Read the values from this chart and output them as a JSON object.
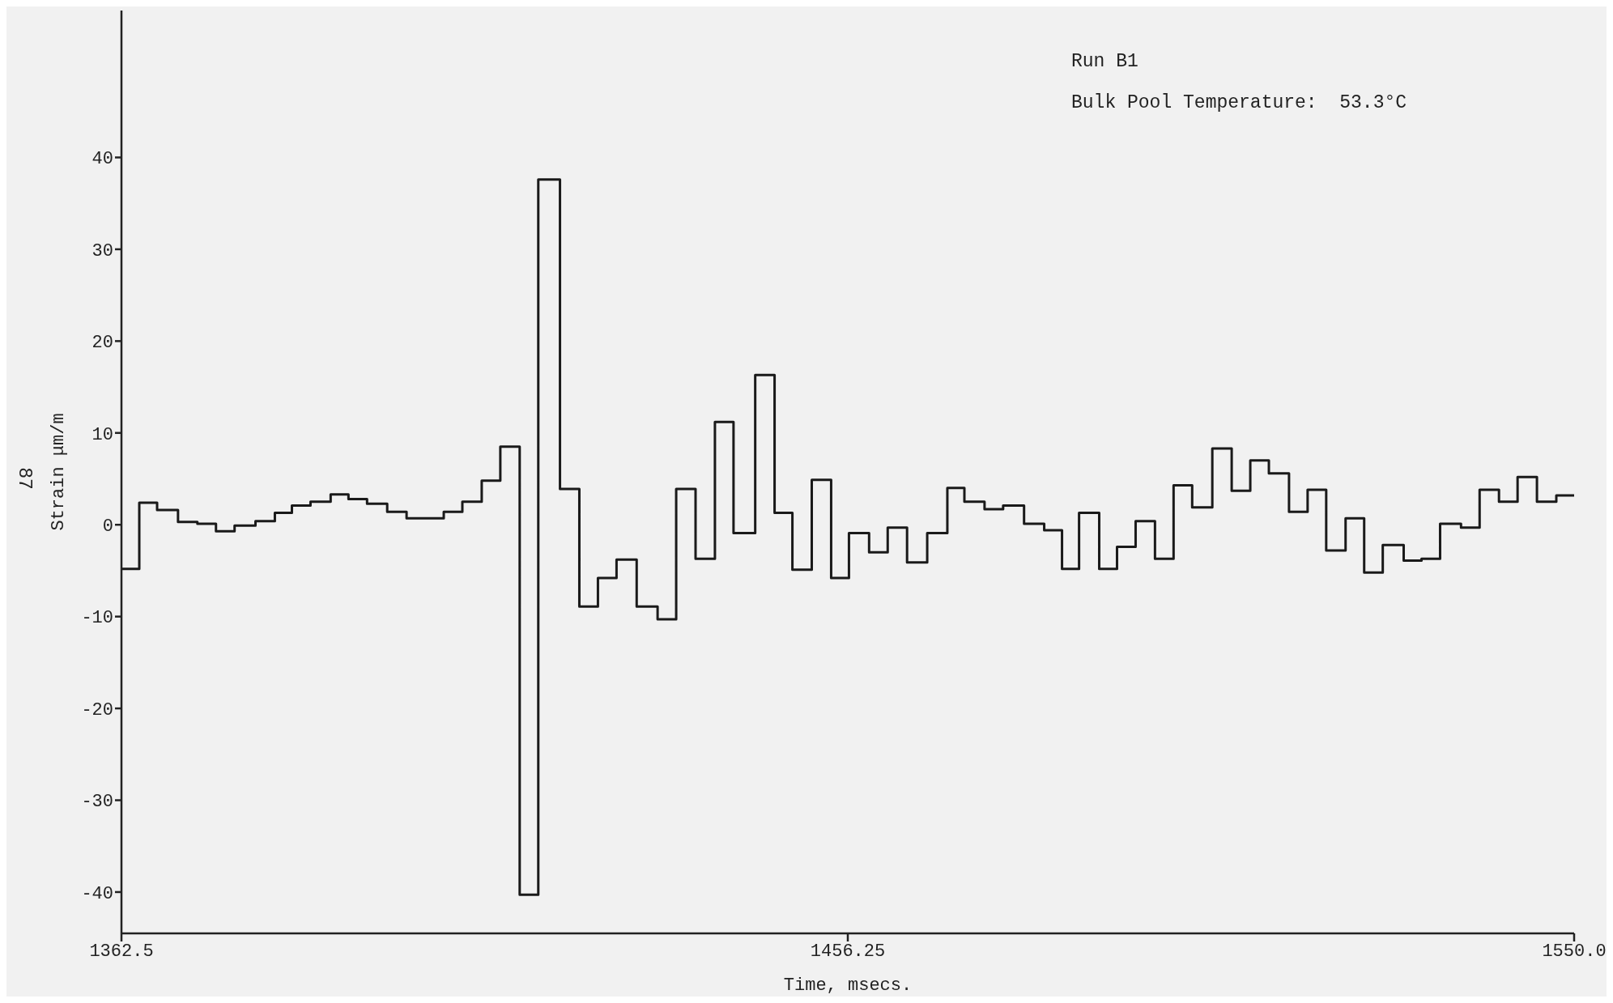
{
  "chart_data": {
    "type": "step",
    "xlabel": "Time, msecs.",
    "ylabel": "Strain μm/m",
    "annotations": [
      "Run B1",
      "Bulk Pool Temperature:  53.3°C",
      "87"
    ],
    "x": [
      1362.5,
      1364.8,
      1367.1,
      1369.8,
      1372.3,
      1374.7,
      1377.1,
      1379.8,
      1382.3,
      1384.5,
      1386.9,
      1389.5,
      1391.8,
      1394.2,
      1396.8,
      1399.3,
      1401.7,
      1404.1,
      1406.5,
      1409.0,
      1411.4,
      1413.9,
      1416.3,
      1419.1,
      1421.6,
      1424.0,
      1426.4,
      1429.0,
      1431.7,
      1434.1,
      1436.6,
      1439.1,
      1441.5,
      1444.3,
      1446.8,
      1449.1,
      1451.6,
      1454.1,
      1456.4,
      1459.0,
      1461.4,
      1463.9,
      1466.5,
      1469.1,
      1471.3,
      1473.9,
      1476.3,
      1479.0,
      1481.6,
      1483.9,
      1486.1,
      1488.7,
      1491.0,
      1493.4,
      1495.9,
      1498.3,
      1500.7,
      1503.3,
      1505.8,
      1508.2,
      1510.6,
      1513.2,
      1515.6,
      1518.0,
      1520.5,
      1522.9,
      1525.3,
      1528.0,
      1530.3,
      1532.7,
      1535.4,
      1537.8,
      1540.3,
      1542.7,
      1545.2,
      1547.7,
      1550.0
    ],
    "series": [
      {
        "color": "#1a1a1a",
        "values": [
          -4.8,
          2.4,
          1.6,
          0.3,
          0.1,
          -0.7,
          -0.1,
          0.4,
          1.3,
          2.1,
          2.5,
          3.3,
          2.8,
          2.3,
          1.4,
          0.7,
          0.7,
          1.4,
          2.5,
          4.8,
          8.5,
          -40.3,
          37.6,
          3.9,
          -8.9,
          -5.8,
          -3.8,
          -8.9,
          -10.3,
          3.9,
          -3.7,
          11.2,
          -0.9,
          16.3,
          1.3,
          -4.9,
          4.9,
          -5.8,
          -0.9,
          -3.0,
          -0.3,
          -4.1,
          -0.9,
          4.0,
          2.5,
          1.7,
          2.1,
          0.1,
          -0.6,
          -4.8,
          1.3,
          -4.8,
          -2.4,
          0.4,
          -3.7,
          4.3,
          1.9,
          8.3,
          3.7,
          7.0,
          5.6,
          1.4,
          3.8,
          -2.8,
          0.7,
          -5.2,
          -2.2,
          -3.9,
          -3.7,
          0.1,
          -0.3,
          3.8,
          2.5,
          5.2,
          2.5,
          3.2,
          3.2
        ]
      }
    ],
    "xlim": [
      1362.5,
      1550.0
    ],
    "xticks": [
      1362.5,
      1456.25,
      {
        "value": 1550,
        "label": "1550.0"
      }
    ],
    "ylim": [
      -44.5,
      56
    ],
    "yticks": [
      -40,
      -30,
      -20,
      -10,
      0,
      10,
      20,
      30,
      40
    ],
    "grid": false,
    "legend": false
  }
}
